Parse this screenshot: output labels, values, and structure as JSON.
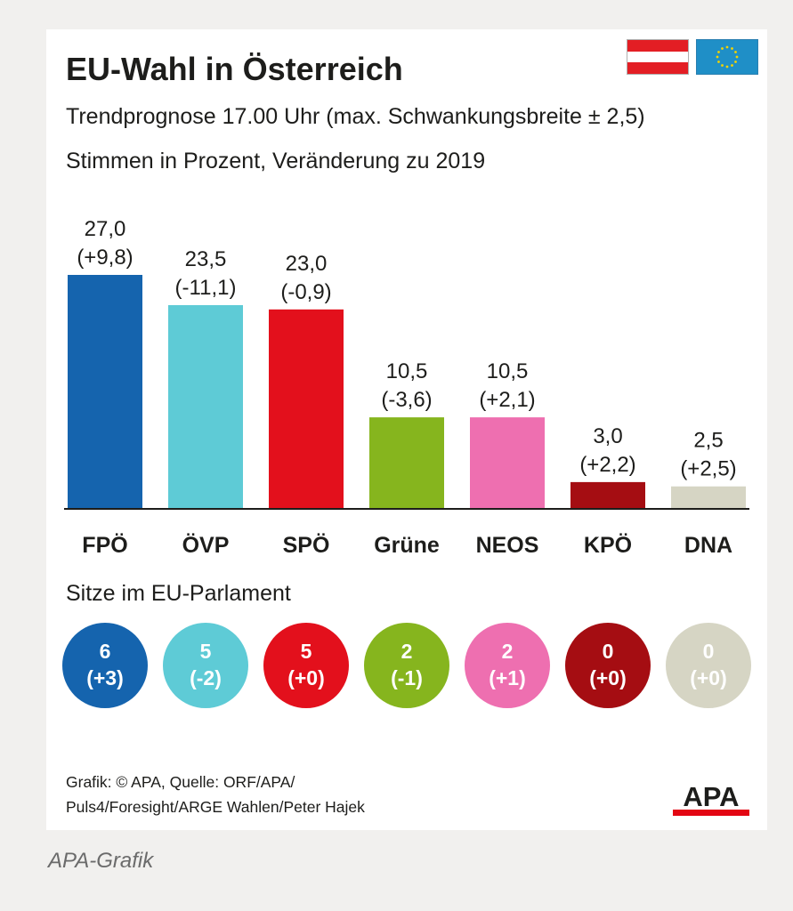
{
  "header": {
    "title": "EU-Wahl in Österreich",
    "subtitle_1": "Trendprognose 17.00 Uhr (max. Schwankungsbreite ± 2,5)",
    "subtitle_2": "Stimmen in Prozent, Veränderung zu 2019"
  },
  "flags": [
    {
      "name": "austria-flag-icon",
      "colors": [
        "#e31e24",
        "#ffffff",
        "#e31e24"
      ]
    },
    {
      "name": "eu-flag-icon",
      "colors": [
        "#1f8fc7",
        "#f5d400"
      ]
    }
  ],
  "chart_data": {
    "type": "bar",
    "categories": [
      "FPÖ",
      "ÖVP",
      "SPÖ",
      "Grüne",
      "NEOS",
      "KPÖ",
      "DNA"
    ],
    "values": [
      27.0,
      23.5,
      23.0,
      10.5,
      10.5,
      3.0,
      2.5
    ],
    "value_labels": [
      "27,0",
      "23,5",
      "23,0",
      "10,5",
      "10,5",
      "3,0",
      "2,5"
    ],
    "change_labels": [
      "(+9,8)",
      "(-11,1)",
      "(-0,9)",
      "(-3,6)",
      "(+2,1)",
      "(+2,2)",
      "(+2,5)"
    ],
    "colors": [
      "#1564ae",
      "#5ecbd6",
      "#e3101c",
      "#86b51e",
      "#ee6fb0",
      "#a50d12",
      "#d6d5c4"
    ],
    "ylim": [
      0,
      27.0
    ],
    "grid": false,
    "legend": "none"
  },
  "seats": {
    "heading": "Sitze im EU-Parlament",
    "items": [
      {
        "party": "FPÖ",
        "seats": "6",
        "change": "(+3)",
        "color": "#1564ae"
      },
      {
        "party": "ÖVP",
        "seats": "5",
        "change": "(-2)",
        "color": "#5ecbd6"
      },
      {
        "party": "SPÖ",
        "seats": "5",
        "change": "(+0)",
        "color": "#e3101c"
      },
      {
        "party": "Grüne",
        "seats": "2",
        "change": "(-1)",
        "color": "#86b51e"
      },
      {
        "party": "NEOS",
        "seats": "2",
        "change": "(+1)",
        "color": "#ee6fb0"
      },
      {
        "party": "KPÖ",
        "seats": "0",
        "change": "(+0)",
        "color": "#a50d12"
      },
      {
        "party": "DNA",
        "seats": "0",
        "change": "(+0)",
        "color": "#d6d5c4"
      }
    ]
  },
  "footer": {
    "source_line_1": "Grafik: © APA, Quelle: ORF/APA/",
    "source_line_2": "Puls4/Foresight/ARGE Wahlen/Peter Hajek",
    "logo_text": "APA",
    "logo_colors": [
      "#1d1d1b",
      "#e30613"
    ]
  },
  "caption": "APA-Grafik"
}
